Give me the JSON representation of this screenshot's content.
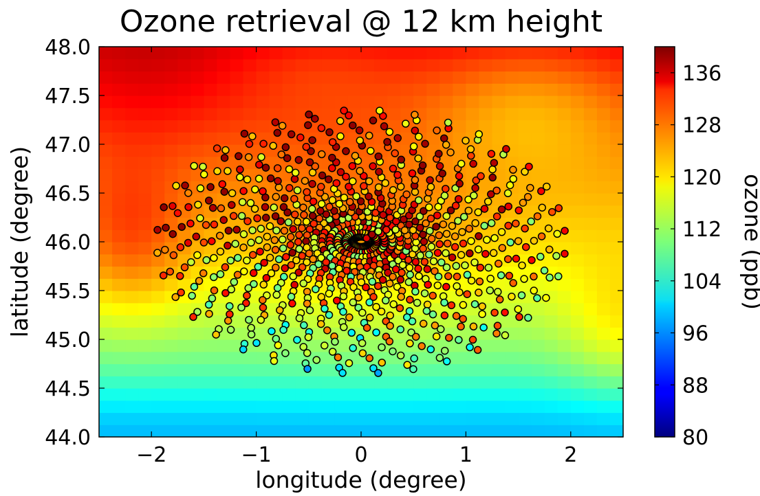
{
  "chart_data": {
    "type": "scatter",
    "title": "Ozone retrieval @ 12 km height",
    "xlabel": "longitude (degree)",
    "ylabel": "latitude (degree)",
    "colorbar_label": "ozone (ppb)",
    "xlim": [
      -2.5,
      2.5
    ],
    "ylim": [
      44.0,
      48.0
    ],
    "x_ticks": [
      -2,
      -1,
      0,
      1,
      2
    ],
    "x_tick_labels": [
      "−2",
      "−1",
      "0",
      "1",
      "2"
    ],
    "y_ticks": [
      44.0,
      44.5,
      45.0,
      45.5,
      46.0,
      46.5,
      47.0,
      47.5,
      48.0
    ],
    "y_tick_labels": [
      "44.0",
      "44.5",
      "45.0",
      "45.5",
      "46.0",
      "46.5",
      "47.0",
      "47.5",
      "48.0"
    ],
    "colorbar_range": [
      80,
      140
    ],
    "colorbar_ticks": [
      80,
      88,
      96,
      104,
      112,
      120,
      128,
      136
    ],
    "colorbar_tick_labels": [
      "80",
      "88",
      "96",
      "104",
      "112",
      "120",
      "128",
      "136"
    ],
    "colormap": "jet",
    "background_field": "gridded ozone field (heatmap)",
    "scatter_region": {
      "center": [
        0.0,
        46.0
      ],
      "x_half_width": 1.95,
      "y_half_width": 1.35,
      "arms": 36,
      "points_per_arm": 26,
      "marker_edge_color": "#000000"
    },
    "grid": false
  }
}
